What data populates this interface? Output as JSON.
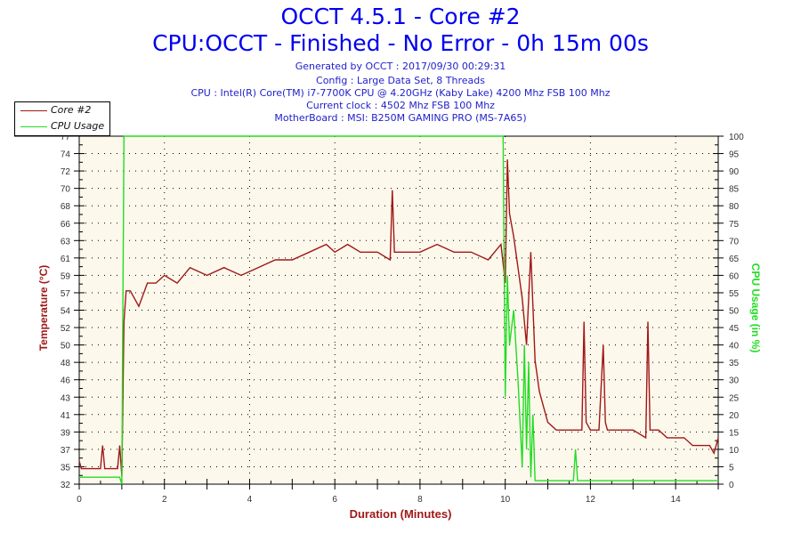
{
  "header": {
    "title": "OCCT 4.5.1 - Core #2",
    "subtitle": "CPU:OCCT - Finished - No Error - 0h 15m 00s",
    "info_lines": [
      "Generated by OCCT : 2017/09/30 00:29:31",
      "Config : Large Data Set, 8 Threads",
      "CPU : Intel(R) Core(TM) i7-7700K CPU @ 4.20GHz (Kaby Lake) 4200 Mhz FSB 100 Mhz",
      "Current clock : 4502 Mhz FSB 100 Mhz",
      "MotherBoard : MSI: B250M GAMING PRO (MS-7A65)"
    ]
  },
  "legend": {
    "items": [
      {
        "label": "Core #2",
        "color": "#a01818"
      },
      {
        "label": "CPU Usage",
        "color": "#22dd22"
      }
    ]
  },
  "colors": {
    "title": "#0000ee",
    "info": "#2222cc",
    "temperature": "#a01818",
    "cpu_usage": "#22dd22",
    "plot_background": "#fdf8ec",
    "grid": "#000000"
  },
  "chart_data": {
    "type": "line",
    "title": "OCCT 4.5.1 - Core #2",
    "subtitle": "CPU:OCCT - Finished - No Error - 0h 15m 00s",
    "xlabel": "Duration (Minutes)",
    "ylabel": "Temperature (°C)",
    "ylabel_right": "CPU Usage (in %)",
    "xlim": [
      0,
      15
    ],
    "ylim": [
      32,
      77
    ],
    "ylim_right": [
      0,
      100
    ],
    "x_ticks": [
      0,
      2,
      4,
      6,
      8,
      10,
      12,
      14
    ],
    "y_ticks_left": [
      "32",
      "35",
      "37",
      "39",
      "41",
      "43",
      "46",
      "48",
      "50",
      "52",
      "54",
      "57",
      "59",
      "61",
      "63",
      "66",
      "68",
      "70",
      "72",
      "74",
      "77"
    ],
    "y_ticks_right": [
      "0",
      "5",
      "10",
      "15",
      "20",
      "25",
      "30",
      "35",
      "40",
      "45",
      "50",
      "55",
      "60",
      "65",
      "70",
      "75",
      "80",
      "85",
      "90",
      "95",
      "100"
    ],
    "grid": true,
    "legend_position": "top-left",
    "series": [
      {
        "name": "Core #2",
        "axis": "left",
        "x": [
          0,
          0.05,
          0.5,
          0.55,
          0.6,
          0.9,
          0.95,
          1.0,
          1.05,
          1.1,
          1.2,
          1.4,
          1.6,
          1.8,
          2.0,
          2.3,
          2.6,
          3.0,
          3.4,
          3.8,
          4.2,
          4.6,
          5.0,
          5.4,
          5.8,
          6.0,
          6.3,
          6.6,
          7.0,
          7.3,
          7.35,
          7.4,
          7.7,
          8.0,
          8.4,
          8.8,
          9.2,
          9.6,
          9.9,
          10.0,
          10.05,
          10.1,
          10.2,
          10.3,
          10.4,
          10.5,
          10.6,
          10.7,
          10.8,
          10.9,
          11.0,
          11.2,
          11.4,
          11.6,
          11.8,
          11.85,
          11.9,
          12.0,
          12.2,
          12.3,
          12.35,
          12.4,
          12.6,
          12.8,
          13.0,
          13.3,
          13.35,
          13.4,
          13.6,
          13.8,
          14.0,
          14.2,
          14.4,
          14.6,
          14.8,
          14.9,
          15.0
        ],
        "values": [
          35,
          34,
          34,
          37,
          34,
          34,
          37,
          33,
          53,
          57,
          57,
          55,
          58,
          58,
          59,
          58,
          60,
          59,
          60,
          59,
          60,
          61,
          61,
          62,
          63,
          62,
          63,
          62,
          62,
          61,
          70,
          62,
          62,
          62,
          63,
          62,
          62,
          61,
          63,
          58,
          74,
          67,
          64,
          60,
          56,
          50,
          62,
          48,
          44,
          42,
          40,
          39,
          39,
          39,
          39,
          53,
          40,
          39,
          39,
          50,
          40,
          39,
          39,
          39,
          39,
          38,
          53,
          39,
          39,
          38,
          38,
          38,
          37,
          37,
          37,
          36,
          38
        ]
      },
      {
        "name": "CPU Usage",
        "axis": "right",
        "x": [
          0,
          0.95,
          1.0,
          1.02,
          1.05,
          2,
          4,
          6,
          8,
          9.9,
          9.95,
          10.0,
          10.05,
          10.1,
          10.2,
          10.3,
          10.4,
          10.45,
          10.5,
          10.55,
          10.6,
          10.65,
          10.7,
          10.8,
          11.0,
          11.5,
          11.6,
          11.65,
          11.7,
          12.0,
          13.0,
          14.0,
          15.0
        ],
        "values": [
          2,
          2,
          0,
          40,
          100,
          100,
          100,
          100,
          100,
          100,
          100,
          25,
          60,
          40,
          50,
          30,
          5,
          40,
          10,
          35,
          2,
          20,
          1,
          1,
          1,
          1,
          1,
          10,
          1,
          1,
          1,
          1,
          1
        ]
      }
    ]
  }
}
